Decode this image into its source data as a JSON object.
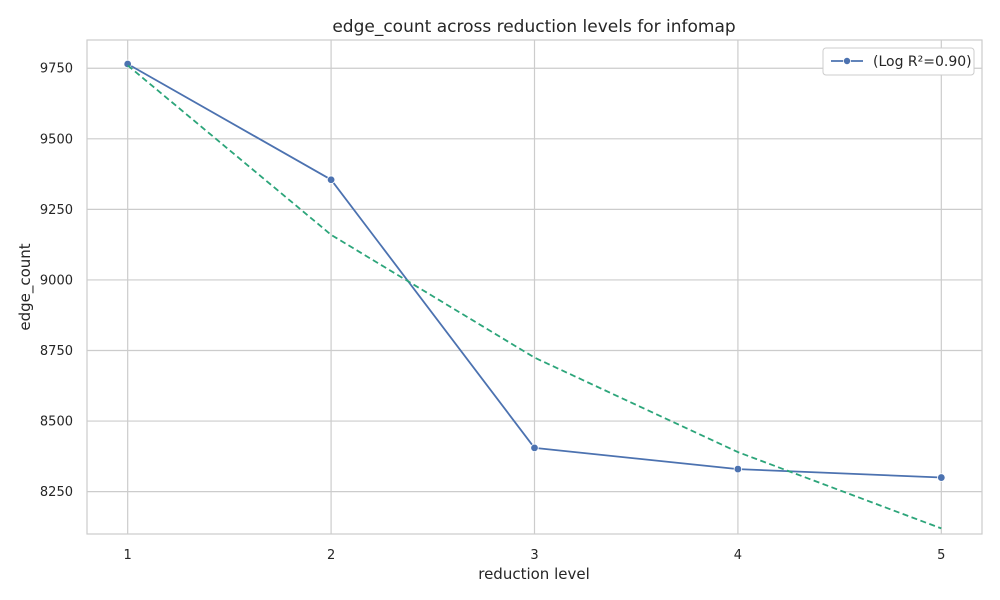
{
  "chart_data": {
    "type": "line",
    "title": "edge_count across reduction levels for infomap",
    "xlabel": "reduction level",
    "ylabel": "edge_count",
    "x": [
      1,
      2,
      3,
      4,
      5
    ],
    "xlim": [
      0.8,
      5.2
    ],
    "ylim": [
      8100,
      9850
    ],
    "yticks": [
      8250,
      8500,
      8750,
      9000,
      9250,
      9500,
      9750
    ],
    "grid": true,
    "legend_position": "top-right",
    "series": [
      {
        "name": "(Log R²=0.90)",
        "values": [
          9765,
          9355,
          8405,
          8330,
          8300
        ],
        "color": "#4c72b0",
        "style": "solid",
        "marker": "circle"
      },
      {
        "values": [
          9760,
          9160,
          8725,
          8390,
          8120
        ],
        "color": "#2ca57a",
        "style": "dashed"
      }
    ]
  }
}
